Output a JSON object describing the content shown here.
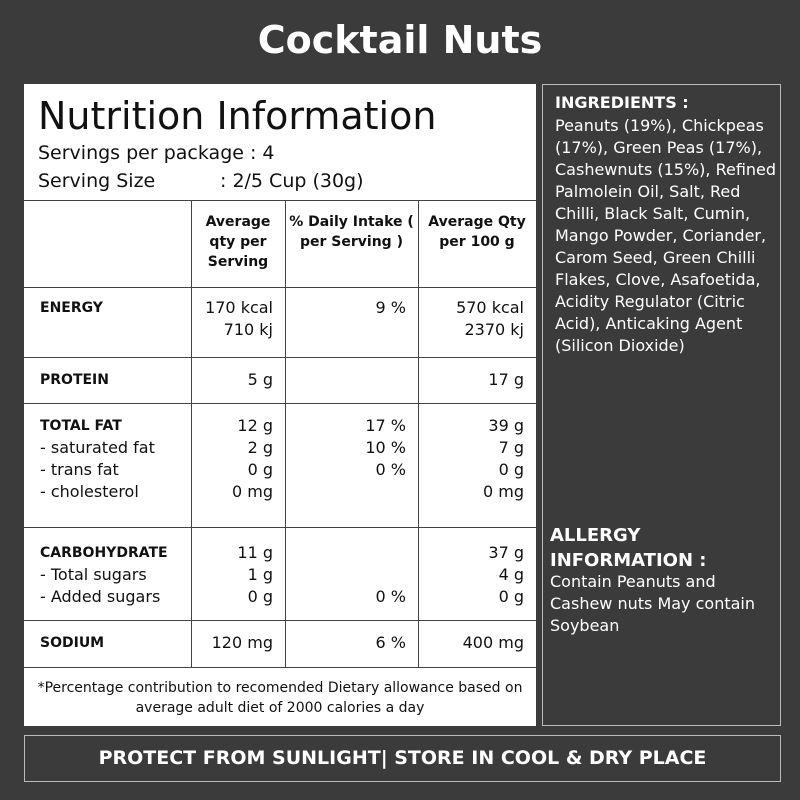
{
  "title": "Cocktail Nuts",
  "nutrition": {
    "heading": "Nutrition Information",
    "servings": "Servings per package : 4",
    "serving_size_label": "Serving Size",
    "serving_size": ": 2/5 Cup (30g)",
    "columns": [
      "Average qty per Serving",
      "% Daily Intake ( per Serving )",
      "Average Qty per 100 g"
    ],
    "rows": [
      [
        [
          "ENERGY",
          "170 kcal",
          "9 %",
          "570 kcal"
        ],
        [
          null,
          "710 kj",
          null,
          "2370 kj"
        ]
      ],
      [
        [
          "PROTEIN",
          "5 g",
          null,
          "17 g"
        ]
      ],
      [
        [
          "TOTAL FAT",
          "12 g",
          "17 %",
          "39 g"
        ],
        [
          "- saturated fat",
          "2 g",
          "10 %",
          "7 g"
        ],
        [
          "- trans fat",
          "0 g",
          "0 %",
          "0 g"
        ],
        [
          "- cholesterol",
          "0 mg",
          null,
          "0 mg"
        ]
      ],
      [
        [
          "CARBOHYDRATE",
          "11 g",
          null,
          "37 g"
        ],
        [
          "- Total sugars",
          "1 g",
          null,
          "4 g"
        ],
        [
          "- Added sugars",
          "0 g",
          "0 %",
          "0 g"
        ]
      ],
      [
        [
          "SODIUM",
          "120 mg",
          "6 %",
          "400 mg"
        ]
      ]
    ],
    "footnote": "*Percentage contribution to recomended Dietary allowance based on average adult diet of 2000 calories a day"
  },
  "ingredients": {
    "heading": "INGREDIENTS :",
    "text": "Peanuts (19%), Chickpeas (17%), Green Peas (17%), Cashewnuts (15%), Refined Palmolein Oil, Salt, Red Chilli, Black Salt, Cumin, Mango Powder, Coriander, Carom Seed, Green Chilli Flakes, Clove, Asafoetida, Acidity Regulator (Citric Acid), Anticaking Agent (Silicon Dioxide)"
  },
  "allergy": {
    "heading": "ALLERGY INFORMATION :",
    "text": "Contain Peanuts and Cashew nuts May contain Soybean"
  },
  "storage": "PROTECT FROM SUNLIGHT| STORE IN COOL & DRY PLACE"
}
